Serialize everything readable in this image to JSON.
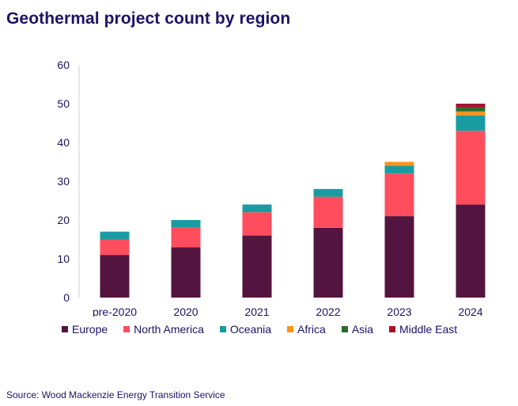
{
  "title": "Geothermal project count by region",
  "source": "Source: Wood Mackenzie Energy Transition Service",
  "chart_data": {
    "type": "bar",
    "stacked": true,
    "title": "Geothermal project count by region",
    "categories": [
      "pre-2020",
      "2020",
      "2021",
      "2022",
      "2023",
      "2024"
    ],
    "ylim": [
      0,
      60
    ],
    "yticks": [
      0,
      10,
      20,
      30,
      40,
      50,
      60
    ],
    "grid": false,
    "legend": "bottom",
    "series": [
      {
        "name": "Europe",
        "color": "#541440",
        "values": [
          11,
          13,
          16,
          18,
          21,
          24
        ]
      },
      {
        "name": "North America",
        "color": "#ff4d5e",
        "values": [
          4,
          5,
          6,
          8,
          11,
          19
        ]
      },
      {
        "name": "Oceania",
        "color": "#1a9ba1",
        "values": [
          2,
          2,
          2,
          2,
          2,
          4
        ]
      },
      {
        "name": "Africa",
        "color": "#f7941d",
        "values": [
          0,
          0,
          0,
          0,
          1,
          1
        ]
      },
      {
        "name": "Asia",
        "color": "#2a6b2e",
        "values": [
          0,
          0,
          0,
          0,
          0,
          1
        ]
      },
      {
        "name": "Middle East",
        "color": "#a3142b",
        "values": [
          0,
          0,
          0,
          0,
          0,
          1
        ]
      }
    ]
  }
}
